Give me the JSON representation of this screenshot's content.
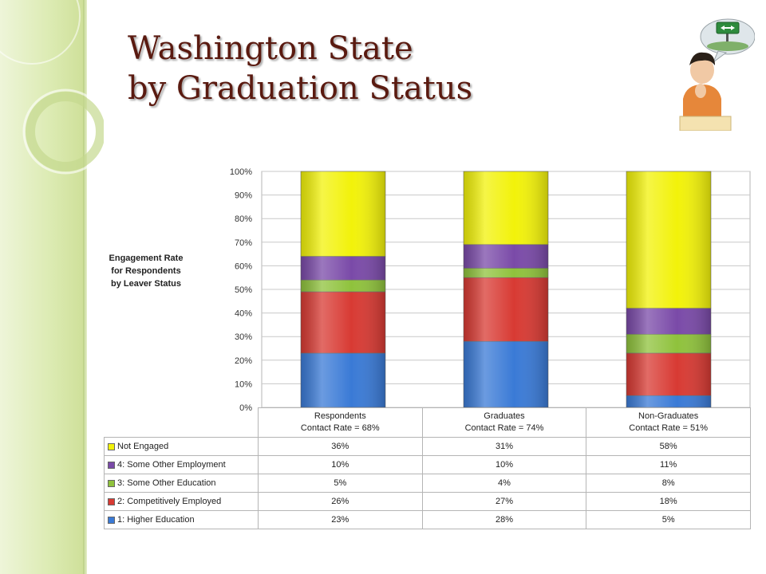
{
  "slide": {
    "title_line1": "Washington State",
    "title_line2": "by Graduation Status"
  },
  "side_label": {
    "line1": "Engagement Rate",
    "line2": "for Respondents",
    "line3": "by Leaver Status"
  },
  "clipart": {
    "icon": "thinking-student-icon",
    "sign_icon": "road-sign-arrows-icon"
  },
  "chart_data": {
    "type": "bar",
    "stacked": true,
    "normalized_percent": true,
    "ylim": [
      0,
      100
    ],
    "yticks": [
      "0%",
      "10%",
      "20%",
      "30%",
      "40%",
      "50%",
      "60%",
      "70%",
      "80%",
      "90%",
      "100%"
    ],
    "grid": true,
    "categories": [
      {
        "name": "Respondents",
        "sub": "Contact Rate = 68%"
      },
      {
        "name": "Graduates",
        "sub": "Contact Rate = 74%"
      },
      {
        "name": "Non-Graduates",
        "sub": "Contact Rate = 51%"
      }
    ],
    "series": [
      {
        "name": "1: Higher Education",
        "color": "#3a7ad6",
        "values": [
          23,
          28,
          5
        ],
        "labels": [
          "23%",
          "28%",
          "5%"
        ]
      },
      {
        "name": "2: Competitively Employed",
        "color": "#d83a33",
        "values": [
          26,
          27,
          18
        ],
        "labels": [
          "26%",
          "27%",
          "18%"
        ]
      },
      {
        "name": "3: Some Other Education",
        "color": "#8fc23c",
        "values": [
          5,
          4,
          8
        ],
        "labels": [
          "5%",
          "4%",
          "8%"
        ]
      },
      {
        "name": "4: Some Other Employment",
        "color": "#7a4aa8",
        "values": [
          10,
          10,
          11
        ],
        "labels": [
          "10%",
          "10%",
          "11%"
        ]
      },
      {
        "name": "Not Engaged",
        "color": "#f2f20a",
        "values": [
          36,
          31,
          58
        ],
        "labels": [
          "36%",
          "31%",
          "58%"
        ]
      }
    ]
  }
}
